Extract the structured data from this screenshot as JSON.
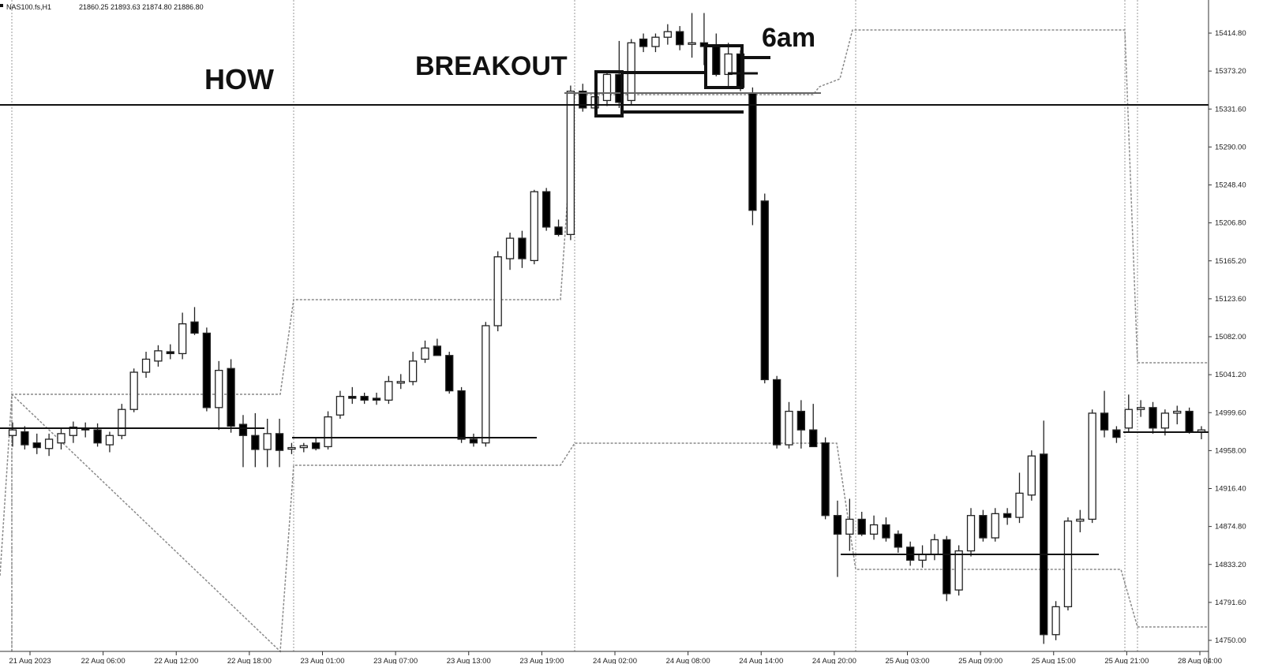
{
  "header": {
    "symbol": "NAS100.fs,H1",
    "ohlc": "21860.25 21893.63 21874.80 21886.80"
  },
  "annotations": {
    "how": "HOW",
    "breakout": "BREAKOUT",
    "six_am": "6am"
  },
  "chart_data": {
    "type": "candlestick",
    "y_ticks": [
      "15414.80",
      "15373.20",
      "15331.60",
      "15290.00",
      "15248.40",
      "15206.80",
      "15165.20",
      "15123.60",
      "15082.00",
      "15041.20",
      "14999.60",
      "14958.00",
      "14916.40",
      "14874.80",
      "14833.20",
      "14791.60",
      "14750.00"
    ],
    "x_ticks": [
      "21 Aug 2023",
      "22 Aug 06:00",
      "22 Aug 12:00",
      "22 Aug 18:00",
      "23 Aug 01:00",
      "23 Aug 07:00",
      "23 Aug 13:00",
      "23 Aug 19:00",
      "24 Aug 02:00",
      "24 Aug 08:00",
      "24 Aug 14:00",
      "24 Aug 20:00",
      "25 Aug 03:00",
      "25 Aug 09:00",
      "25 Aug 15:00",
      "25 Aug 21:00",
      "28 Aug 04:00"
    ],
    "ylim": [
      14738,
      15438
    ],
    "grid": false,
    "candles": [
      {
        "o": 14970,
        "h": 14984,
        "l": 14958,
        "c": 14976
      },
      {
        "o": 14974,
        "h": 14980,
        "l": 14955,
        "c": 14960
      },
      {
        "o": 14962,
        "h": 14972,
        "l": 14950,
        "c": 14957
      },
      {
        "o": 14956,
        "h": 14972,
        "l": 14948,
        "c": 14966
      },
      {
        "o": 14962,
        "h": 14977,
        "l": 14955,
        "c": 14972
      },
      {
        "o": 14970,
        "h": 14985,
        "l": 14962,
        "c": 14979
      },
      {
        "o": 14978,
        "h": 14984,
        "l": 14968,
        "c": 14976
      },
      {
        "o": 14976,
        "h": 14983,
        "l": 14958,
        "c": 14962
      },
      {
        "o": 14960,
        "h": 14974,
        "l": 14952,
        "c": 14970
      },
      {
        "o": 14970,
        "h": 15004,
        "l": 14966,
        "c": 14998
      },
      {
        "o": 14998,
        "h": 15042,
        "l": 14995,
        "c": 15038
      },
      {
        "o": 15038,
        "h": 15060,
        "l": 15032,
        "c": 15052
      },
      {
        "o": 15050,
        "h": 15067,
        "l": 15044,
        "c": 15061
      },
      {
        "o": 15060,
        "h": 15068,
        "l": 15052,
        "c": 15058
      },
      {
        "o": 15058,
        "h": 15102,
        "l": 15052,
        "c": 15090
      },
      {
        "o": 15092,
        "h": 15108,
        "l": 15078,
        "c": 15080
      },
      {
        "o": 15080,
        "h": 15086,
        "l": 14996,
        "c": 15000
      },
      {
        "o": 15000,
        "h": 15050,
        "l": 14976,
        "c": 15040
      },
      {
        "o": 15042,
        "h": 15052,
        "l": 14973,
        "c": 14980
      },
      {
        "o": 14982,
        "h": 14992,
        "l": 14936,
        "c": 14970
      },
      {
        "o": 14970,
        "h": 14994,
        "l": 14936,
        "c": 14955
      },
      {
        "o": 14955,
        "h": 14988,
        "l": 14936,
        "c": 14972
      },
      {
        "o": 14972,
        "h": 14988,
        "l": 14936,
        "c": 14954
      },
      {
        "o": 14956,
        "h": 14962,
        "l": 14950,
        "c": 14957
      },
      {
        "o": 14957,
        "h": 14962,
        "l": 14952,
        "c": 14959
      },
      {
        "o": 14962,
        "h": 14968,
        "l": 14954,
        "c": 14956
      },
      {
        "o": 14958,
        "h": 14996,
        "l": 14955,
        "c": 14990
      },
      {
        "o": 14992,
        "h": 15018,
        "l": 14988,
        "c": 15012
      },
      {
        "o": 15012,
        "h": 15022,
        "l": 15004,
        "c": 15010
      },
      {
        "o": 15012,
        "h": 15016,
        "l": 15004,
        "c": 15008
      },
      {
        "o": 15010,
        "h": 15016,
        "l": 15003,
        "c": 15008
      },
      {
        "o": 15008,
        "h": 15034,
        "l": 15004,
        "c": 15028
      },
      {
        "o": 15028,
        "h": 15036,
        "l": 15020,
        "c": 15028
      },
      {
        "o": 15028,
        "h": 15060,
        "l": 15024,
        "c": 15050
      },
      {
        "o": 15052,
        "h": 15072,
        "l": 15048,
        "c": 15064
      },
      {
        "o": 15066,
        "h": 15074,
        "l": 15056,
        "c": 15056
      },
      {
        "o": 15056,
        "h": 15060,
        "l": 15015,
        "c": 15018
      },
      {
        "o": 15018,
        "h": 15022,
        "l": 14962,
        "c": 14966
      },
      {
        "o": 14966,
        "h": 14972,
        "l": 14958,
        "c": 14962
      },
      {
        "o": 14962,
        "h": 15092,
        "l": 14958,
        "c": 15088
      },
      {
        "o": 15088,
        "h": 15168,
        "l": 15082,
        "c": 15162
      },
      {
        "o": 15160,
        "h": 15188,
        "l": 15148,
        "c": 15182
      },
      {
        "o": 15182,
        "h": 15190,
        "l": 15150,
        "c": 15160
      },
      {
        "o": 15158,
        "h": 15234,
        "l": 15154,
        "c": 15232
      },
      {
        "o": 15232,
        "h": 15236,
        "l": 15190,
        "c": 15194
      },
      {
        "o": 15194,
        "h": 15202,
        "l": 15184,
        "c": 15186
      },
      {
        "o": 15186,
        "h": 15346,
        "l": 15180,
        "c": 15340
      },
      {
        "o": 15340,
        "h": 15348,
        "l": 15318,
        "c": 15322
      },
      {
        "o": 15322,
        "h": 15342,
        "l": 15316,
        "c": 15334
      },
      {
        "o": 15330,
        "h": 15362,
        "l": 15324,
        "c": 15358
      },
      {
        "o": 15358,
        "h": 15394,
        "l": 15322,
        "c": 15328
      },
      {
        "o": 15330,
        "h": 15396,
        "l": 15326,
        "c": 15392
      },
      {
        "o": 15396,
        "h": 15402,
        "l": 15382,
        "c": 15388
      },
      {
        "o": 15388,
        "h": 15402,
        "l": 15382,
        "c": 15398
      },
      {
        "o": 15398,
        "h": 15412,
        "l": 15390,
        "c": 15404
      },
      {
        "o": 15404,
        "h": 15410,
        "l": 15384,
        "c": 15390
      },
      {
        "o": 15392,
        "h": 15424,
        "l": 15376,
        "c": 15392
      },
      {
        "o": 15392,
        "h": 15424,
        "l": 15368,
        "c": 15388
      },
      {
        "o": 15388,
        "h": 15402,
        "l": 15356,
        "c": 15358
      },
      {
        "o": 15358,
        "h": 15392,
        "l": 15344,
        "c": 15380
      },
      {
        "o": 15380,
        "h": 15384,
        "l": 15340,
        "c": 15344
      },
      {
        "o": 15338,
        "h": 15344,
        "l": 15196,
        "c": 15212
      },
      {
        "o": 15222,
        "h": 15230,
        "l": 15026,
        "c": 15030
      },
      {
        "o": 15030,
        "h": 15034,
        "l": 14956,
        "c": 14960
      },
      {
        "o": 14960,
        "h": 15006,
        "l": 14956,
        "c": 14996
      },
      {
        "o": 14996,
        "h": 15008,
        "l": 14956,
        "c": 14976
      },
      {
        "o": 14976,
        "h": 15004,
        "l": 14960,
        "c": 14958
      },
      {
        "o": 14962,
        "h": 14968,
        "l": 14880,
        "c": 14884
      },
      {
        "o": 14884,
        "h": 14900,
        "l": 14818,
        "c": 14864
      },
      {
        "o": 14864,
        "h": 14902,
        "l": 14846,
        "c": 14880
      },
      {
        "o": 14880,
        "h": 14888,
        "l": 14862,
        "c": 14864
      },
      {
        "o": 14864,
        "h": 14884,
        "l": 14858,
        "c": 14874
      },
      {
        "o": 14874,
        "h": 14882,
        "l": 14856,
        "c": 14860
      },
      {
        "o": 14864,
        "h": 14868,
        "l": 14844,
        "c": 14850
      },
      {
        "o": 14850,
        "h": 14856,
        "l": 14830,
        "c": 14836
      },
      {
        "o": 14836,
        "h": 14852,
        "l": 14828,
        "c": 14842
      },
      {
        "o": 14842,
        "h": 14864,
        "l": 14836,
        "c": 14858
      },
      {
        "o": 14858,
        "h": 14862,
        "l": 14792,
        "c": 14800
      },
      {
        "o": 14804,
        "h": 14852,
        "l": 14798,
        "c": 14846
      },
      {
        "o": 14846,
        "h": 14892,
        "l": 14840,
        "c": 14884
      },
      {
        "o": 14884,
        "h": 14890,
        "l": 14856,
        "c": 14860
      },
      {
        "o": 14860,
        "h": 14892,
        "l": 14856,
        "c": 14886
      },
      {
        "o": 14886,
        "h": 14892,
        "l": 14874,
        "c": 14882
      },
      {
        "o": 14882,
        "h": 14930,
        "l": 14876,
        "c": 14908
      },
      {
        "o": 14906,
        "h": 14954,
        "l": 14900,
        "c": 14948
      },
      {
        "o": 14950,
        "h": 14986,
        "l": 14746,
        "c": 14756
      },
      {
        "o": 14756,
        "h": 14792,
        "l": 14750,
        "c": 14786
      },
      {
        "o": 14786,
        "h": 14882,
        "l": 14782,
        "c": 14878
      },
      {
        "o": 14878,
        "h": 14890,
        "l": 14866,
        "c": 14880
      },
      {
        "o": 14880,
        "h": 14998,
        "l": 14876,
        "c": 14994
      },
      {
        "o": 14994,
        "h": 15018,
        "l": 14968,
        "c": 14976
      },
      {
        "o": 14976,
        "h": 14980,
        "l": 14962,
        "c": 14968
      },
      {
        "o": 14978,
        "h": 15014,
        "l": 14974,
        "c": 14998
      },
      {
        "o": 14998,
        "h": 15008,
        "l": 14990,
        "c": 15000
      },
      {
        "o": 15000,
        "h": 15006,
        "l": 14972,
        "c": 14978
      },
      {
        "o": 14978,
        "h": 14998,
        "l": 14970,
        "c": 14994
      },
      {
        "o": 14994,
        "h": 15002,
        "l": 14982,
        "c": 14996
      },
      {
        "o": 14996,
        "h": 15000,
        "l": 14972,
        "c": 14974
      },
      {
        "o": 14974,
        "h": 14980,
        "l": 14966,
        "c": 14976
      }
    ]
  }
}
